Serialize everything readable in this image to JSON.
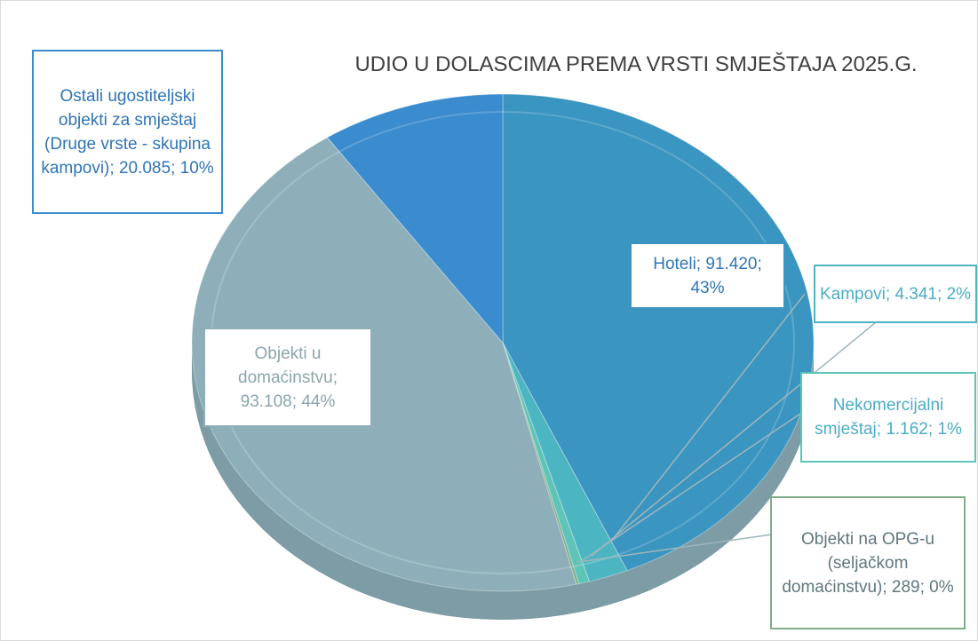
{
  "chart_data": {
    "type": "pie",
    "title": "UDIO U DOLASCIMA PREMA VRSTI SMJEŠTAJA 2025.G.",
    "categories": [
      "Hoteli",
      "Kampovi",
      "Nekomercijalni smještaj",
      "Objekti na OPG-u (seljačkom domaćinstvu)",
      "Objekti u domaćinstvu",
      "Ostali ugostiteljski objekti za smještaj (Druge vrste - skupina kampovi)"
    ],
    "values": [
      91420,
      4341,
      1162,
      289,
      93108,
      20085
    ],
    "value_labels": [
      "91.420",
      "4.341",
      "1.162",
      "289",
      "93.108",
      "20.085"
    ],
    "percents": [
      43,
      2,
      1,
      0,
      44,
      10
    ],
    "percent_labels": [
      "43%",
      "2%",
      "1%",
      "0%",
      "44%",
      "10%"
    ],
    "label_separator": "; ",
    "colors": [
      "#3a95c0",
      "#4cb5c2",
      "#5fc4b8",
      "#7fae8a",
      "#8eafba",
      "#3a8ccf"
    ],
    "label_colors": [
      "#2e75b6",
      "#4bacc6",
      "#4bacc6",
      "#5f7680",
      "#8aa5ae",
      "#2e75b6"
    ]
  }
}
